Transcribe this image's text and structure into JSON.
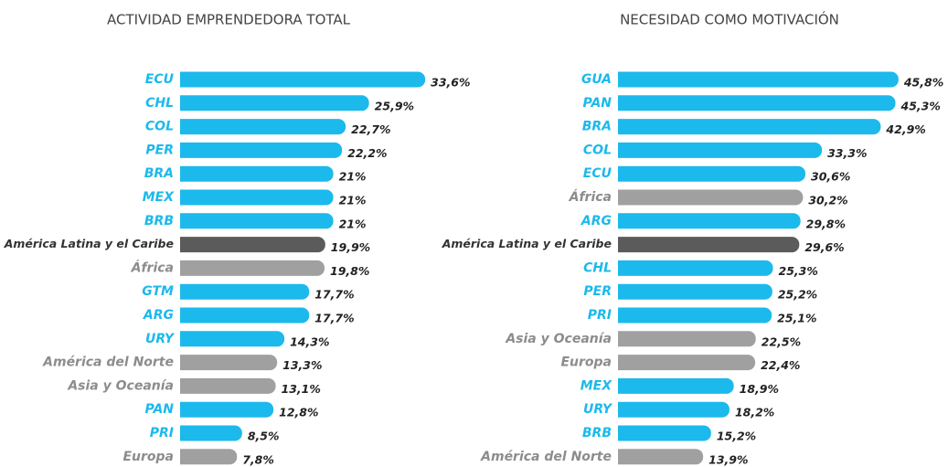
{
  "chart_data": [
    {
      "type": "barh",
      "title": "ACTIVIDAD EMPRENDEDORA TOTAL",
      "categories": [
        "ECU",
        "CHL",
        "COL",
        "PER",
        "BRA",
        "MEX",
        "BRB",
        "América Latina y el Caribe",
        "África",
        "GTM",
        "ARG",
        "URY",
        "América del Norte",
        "Asia y Oceanía",
        "PAN",
        "PRI",
        "Europa"
      ],
      "values": [
        33.6,
        25.9,
        22.7,
        22.2,
        21,
        21,
        21,
        19.9,
        19.8,
        17.7,
        17.7,
        14.3,
        13.3,
        13.1,
        12.8,
        8.5,
        7.8
      ],
      "value_labels": [
        "33,6%",
        "25,9%",
        "22,7%",
        "22,2%",
        "21%",
        "21%",
        "21%",
        "19,9%",
        "19,8%",
        "17,7%",
        "17,7%",
        "14,3%",
        "13,3%",
        "13,1%",
        "12,8%",
        "8,5%",
        "7,8%"
      ],
      "colors": [
        "#1cb9ec",
        "#1cb9ec",
        "#1cb9ec",
        "#1cb9ec",
        "#1cb9ec",
        "#1cb9ec",
        "#1cb9ec",
        "#5b5b5b",
        "#a0a0a0",
        "#1cb9ec",
        "#1cb9ec",
        "#1cb9ec",
        "#a0a0a0",
        "#a0a0a0",
        "#1cb9ec",
        "#1cb9ec",
        "#a0a0a0"
      ]
    },
    {
      "type": "barh",
      "title": "NECESIDAD COMO MOTIVACIÓN",
      "categories": [
        "GUA",
        "PAN",
        "BRA",
        "COL",
        "ECU",
        "África",
        "ARG",
        "América Latina y el Caribe",
        "CHL",
        "PER",
        "PRI",
        "Asia y Oceanía",
        "Europa",
        "MEX",
        "URY",
        "BRB",
        "América del Norte"
      ],
      "values": [
        45.8,
        45.3,
        42.9,
        33.3,
        30.6,
        30.2,
        29.8,
        29.6,
        25.3,
        25.2,
        25.1,
        22.5,
        22.4,
        18.9,
        18.2,
        15.2,
        13.9
      ],
      "value_labels": [
        "45,8%",
        "45,3%",
        "42,9%",
        "33,3%",
        "30,6%",
        "30,2%",
        "29,8%",
        "29,6%",
        "25,3%",
        "25,2%",
        "25,1%",
        "22,5%",
        "22,4%",
        "18,9%",
        "18,2%",
        "15,2%",
        "13,9%"
      ],
      "colors": [
        "#1cb9ec",
        "#1cb9ec",
        "#1cb9ec",
        "#1cb9ec",
        "#1cb9ec",
        "#a0a0a0",
        "#1cb9ec",
        "#5b5b5b",
        "#1cb9ec",
        "#1cb9ec",
        "#1cb9ec",
        "#a0a0a0",
        "#a0a0a0",
        "#1cb9ec",
        "#1cb9ec",
        "#1cb9ec",
        "#a0a0a0"
      ]
    }
  ]
}
